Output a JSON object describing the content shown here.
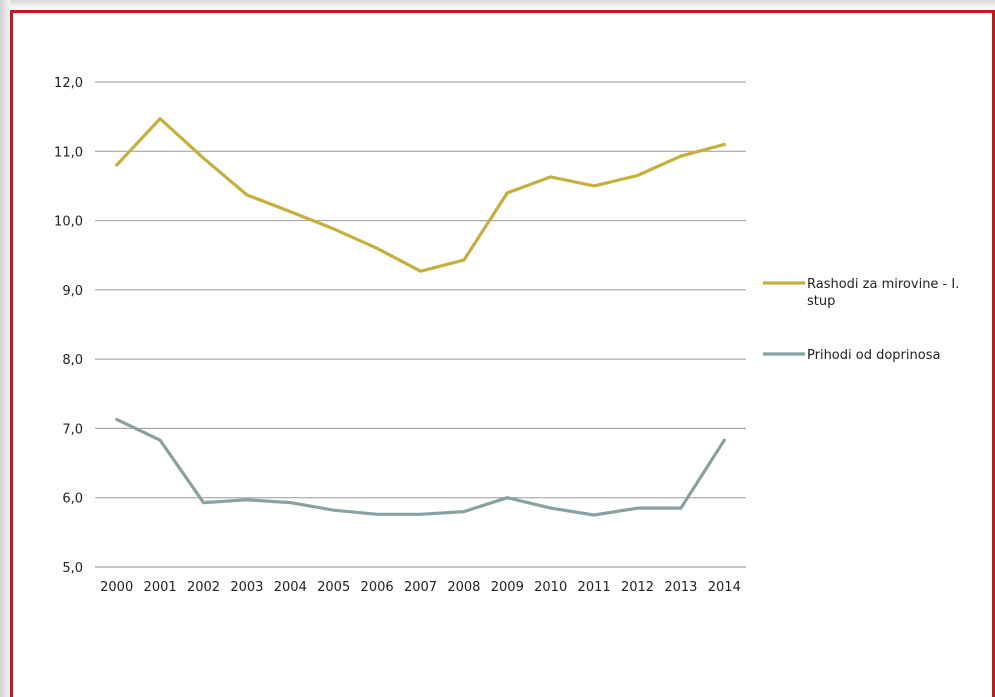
{
  "chart_data": {
    "type": "line",
    "categories": [
      "2000",
      "2001",
      "2002",
      "2003",
      "2004",
      "2005",
      "2006",
      "2007",
      "2008",
      "2009",
      "2010",
      "2011",
      "2012",
      "2013",
      "2014"
    ],
    "ylim": [
      5.0,
      12.0
    ],
    "yticks": [
      "5,0",
      "6,0",
      "7,0",
      "8,0",
      "9,0",
      "10,0",
      "11,0",
      "12,0"
    ],
    "grid": true,
    "legend_position": "right",
    "series": [
      {
        "name": "Rashodi za mirovine - I. stup",
        "legend_lines": [
          "Rashodi za mirovine - I.",
          "stup"
        ],
        "color": "#c4b03e",
        "values": [
          10.8,
          11.47,
          10.9,
          10.37,
          10.13,
          9.88,
          9.6,
          9.27,
          9.43,
          10.4,
          10.63,
          10.5,
          10.65,
          10.93,
          11.1
        ]
      },
      {
        "name": "Prihodi od doprinosa",
        "legend_lines": [
          "Prihodi od doprinosa"
        ],
        "color": "#8aa1a2",
        "values": [
          7.13,
          6.83,
          5.93,
          5.97,
          5.93,
          5.82,
          5.76,
          5.76,
          5.8,
          6.0,
          5.85,
          5.75,
          5.85,
          5.85,
          6.83
        ]
      }
    ]
  }
}
